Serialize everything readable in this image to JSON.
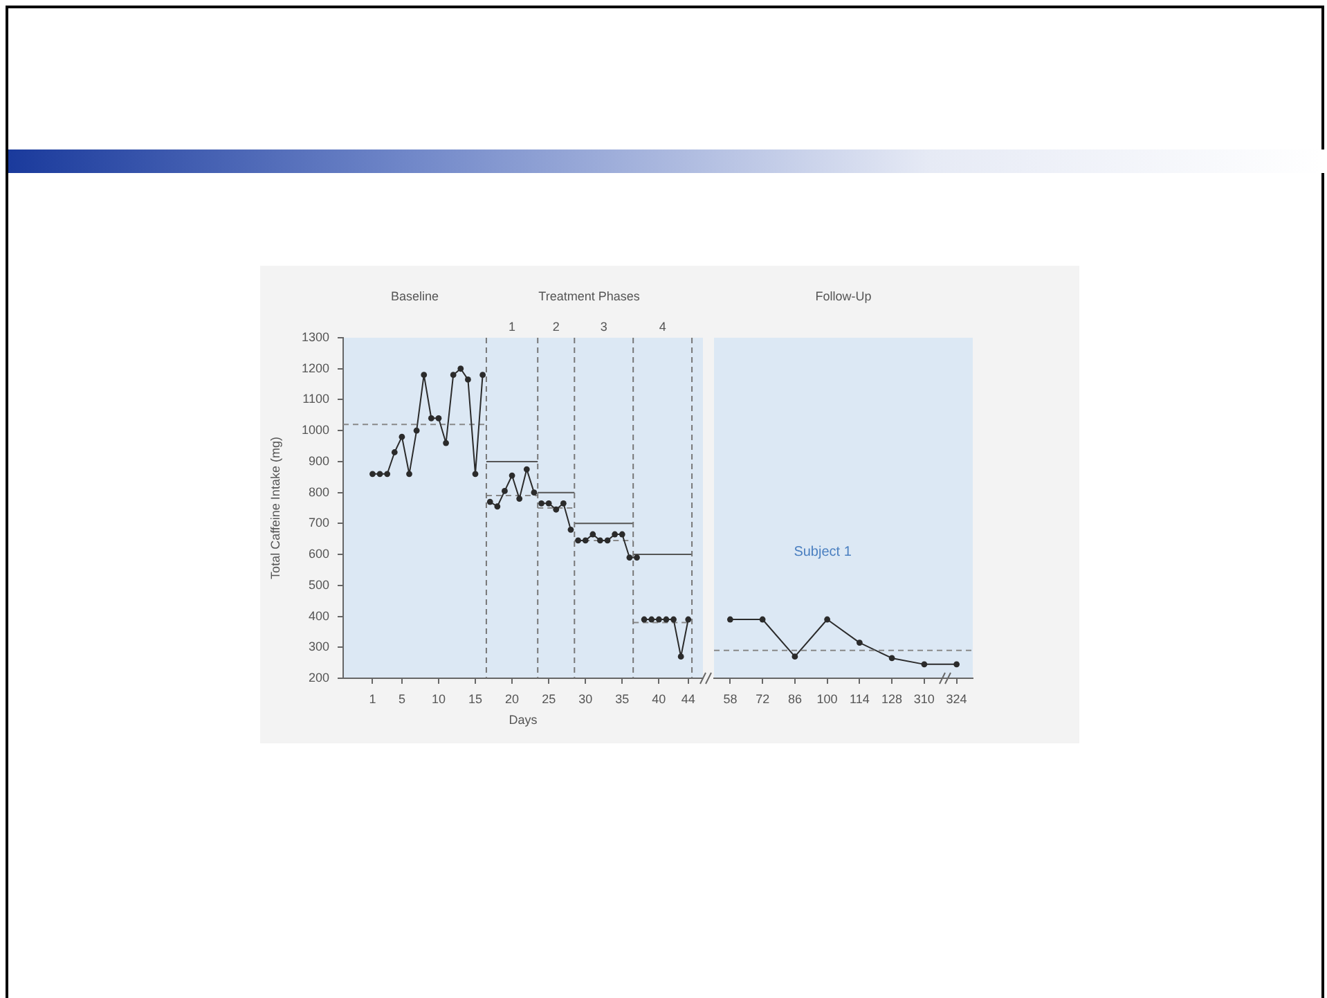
{
  "chart_data": [
    {
      "type": "line",
      "xlabel": "Days",
      "ylabel": "Total Caffeine Intake (mg)",
      "xlim": [
        -3,
        46
      ],
      "xticks": [
        1,
        5,
        10,
        15,
        20,
        25,
        30,
        35,
        40,
        44
      ],
      "ylim": [
        200,
        1300
      ],
      "yticks": [
        200,
        300,
        400,
        500,
        600,
        700,
        800,
        900,
        1000,
        1100,
        1200,
        1300
      ],
      "marker": "circle",
      "tick_labels": "xy",
      "series": [
        {
          "color": "#2b2b2b",
          "x": [
            1,
            2,
            3,
            4,
            5,
            6,
            7,
            8,
            9,
            10,
            11,
            12,
            13,
            14,
            15,
            16
          ],
          "values": [
            860,
            860,
            860,
            930,
            980,
            860,
            1000,
            1180,
            1040,
            1040,
            960,
            1180,
            1200,
            1165,
            860,
            1180
          ]
        },
        {
          "color": "#2b2b2b",
          "x": [
            17,
            18,
            19,
            20,
            21,
            22,
            23
          ],
          "values": [
            770,
            755,
            805,
            855,
            780,
            875,
            800
          ]
        },
        {
          "color": "#2b2b2b",
          "x": [
            24,
            25,
            26,
            27,
            28
          ],
          "values": [
            765,
            765,
            745,
            765,
            680
          ]
        },
        {
          "color": "#2b2b2b",
          "x": [
            29,
            30,
            31,
            32,
            33,
            34,
            35,
            36,
            37
          ],
          "values": [
            645,
            645,
            665,
            645,
            645,
            665,
            665,
            590,
            590
          ]
        },
        {
          "color": "#2b2b2b",
          "x": [
            38,
            39,
            40,
            41,
            42,
            43,
            44
          ],
          "values": [
            390,
            390,
            390,
            390,
            390,
            270,
            390
          ]
        },
        {
          "color": "#555555",
          "marker": "none",
          "x": [
            16.5,
            23.5
          ],
          "values": [
            900,
            900
          ]
        },
        {
          "color": "#555555",
          "marker": "none",
          "x": [
            23.5,
            28.5
          ],
          "values": [
            800,
            800
          ]
        },
        {
          "color": "#555555",
          "marker": "none",
          "x": [
            28.5,
            36.5
          ],
          "values": [
            700,
            700
          ]
        },
        {
          "color": "#555555",
          "marker": "none",
          "x": [
            36.5,
            44.5
          ],
          "values": [
            600,
            600
          ]
        },
        {
          "color": "#888888",
          "marker": "none",
          "line_style": "dashed",
          "x": [
            -3,
            16.5
          ],
          "values": [
            1020,
            1020
          ]
        },
        {
          "color": "#888888",
          "marker": "none",
          "line_style": "dashed",
          "x": [
            16.5,
            23.5
          ],
          "values": [
            790,
            790
          ]
        },
        {
          "color": "#888888",
          "marker": "none",
          "line_style": "dashed",
          "x": [
            23.5,
            28.5
          ],
          "values": [
            750,
            750
          ]
        },
        {
          "color": "#888888",
          "marker": "none",
          "line_style": "dashed",
          "x": [
            28.5,
            36.5
          ],
          "values": [
            645,
            645
          ]
        },
        {
          "color": "#888888",
          "marker": "none",
          "line_style": "dashed",
          "x": [
            36.5,
            44.5
          ],
          "values": [
            380,
            380
          ]
        }
      ],
      "ref_lines": [
        {
          "axis": "x",
          "value": 16.5,
          "line_style": "dashed",
          "color": "#777777"
        },
        {
          "axis": "x",
          "value": 23.5,
          "line_style": "dashed",
          "color": "#777777"
        },
        {
          "axis": "x",
          "value": 28.5,
          "line_style": "dashed",
          "color": "#777777"
        },
        {
          "axis": "x",
          "value": 36.5,
          "line_style": "dashed",
          "color": "#777777"
        },
        {
          "axis": "x",
          "value": 44.5,
          "line_style": "dashed",
          "color": "#777777"
        }
      ],
      "annotations": [
        "Baseline",
        "Treatment Phases",
        "1",
        "2",
        "3",
        "4"
      ]
    },
    {
      "type": "line",
      "title": "Follow-Up",
      "categories": [
        "58",
        "72",
        "86",
        "100",
        "114",
        "128",
        "310",
        "324"
      ],
      "ylim": [
        200,
        1300
      ],
      "yticks": [
        200,
        300,
        400,
        500,
        600,
        700,
        800,
        900,
        1000,
        1100,
        1200,
        1300
      ],
      "tick_labels": "x",
      "marker": "circle",
      "series": [
        {
          "color": "#2b2b2b",
          "values": [
            390,
            390,
            270,
            390,
            315,
            265,
            245,
            245
          ]
        }
      ],
      "ref_lines": [
        {
          "axis": "y",
          "value": 290,
          "line_style": "dashed",
          "color": "#888888"
        }
      ],
      "annotations": [
        "Subject 1"
      ]
    }
  ]
}
